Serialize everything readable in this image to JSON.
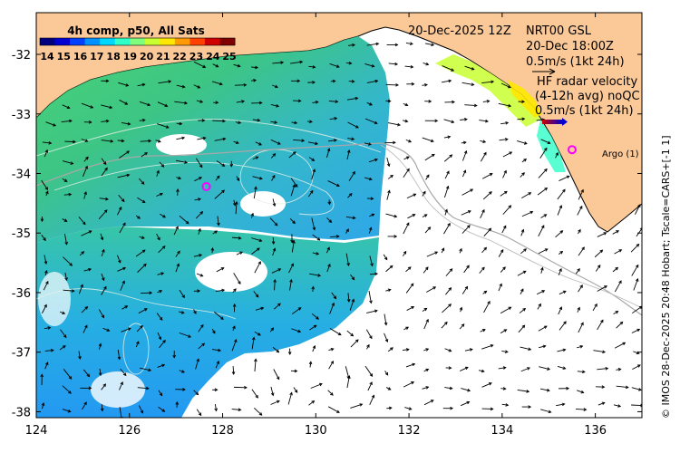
{
  "colorbar": {
    "title": "4h comp, p50, All Sats",
    "labels": [
      "14",
      "15",
      "16",
      "17",
      "18",
      "19",
      "20",
      "21",
      "22",
      "23",
      "24",
      "25"
    ],
    "colors": [
      "#00007f",
      "#0000d0",
      "#0040ff",
      "#0090ff",
      "#00d8ff",
      "#30ffc8",
      "#80ff7f",
      "#c8ff30",
      "#ffe800",
      "#ff9a00",
      "#ff4000",
      "#d00000",
      "#800000"
    ]
  },
  "date_label": "20-Dec-2025 12Z",
  "nrt_info": {
    "line1": "NRT00 GSL",
    "line2": "20-Dec 18:00Z",
    "line3": "0.5m/s (1kt 24h)"
  },
  "hf_info": {
    "line1": "HF radar velocity",
    "line2": "(4-12h avg) noQC",
    "line3": "0.5m/s (1kt 24h)"
  },
  "argo_label": "Argo (1)",
  "credit": "© IMOS 28-Dec-2025 20:48 Hobart; Tscale=CARS+[-1 1]",
  "axes": {
    "lon_ticks": [
      "124",
      "126",
      "128",
      "130",
      "132",
      "134",
      "136"
    ],
    "lat_ticks": [
      "-32",
      "-33",
      "-34",
      "-35",
      "-36",
      "-37",
      "-38"
    ],
    "lon_range": [
      124,
      137
    ],
    "lat_range": [
      -38.1,
      -31.3
    ]
  },
  "argo_floats": [
    {
      "name": "argo-float-west",
      "lon": 127.65,
      "lat": -34.22
    },
    {
      "name": "argo-float-east",
      "lon": 135.5,
      "lat": -33.6
    }
  ],
  "palette": {
    "land": "#fbc898",
    "coast": "#000000",
    "isobath": "#a8a8a8",
    "argo": "#ff00ff",
    "arrow": "#000000"
  }
}
